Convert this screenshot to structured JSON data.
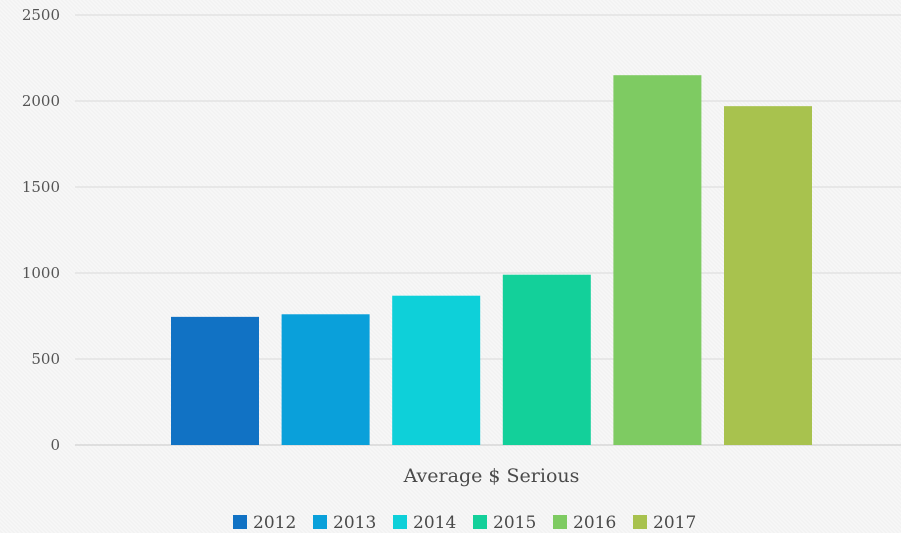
{
  "chart_data": {
    "type": "bar",
    "categories": [
      "Average $ Serious"
    ],
    "series": [
      {
        "name": "2012",
        "values": [
          745
        ],
        "color": "#1172c4"
      },
      {
        "name": "2013",
        "values": [
          760
        ],
        "color": "#0aa0da"
      },
      {
        "name": "2014",
        "values": [
          868
        ],
        "color": "#0ed0d9"
      },
      {
        "name": "2015",
        "values": [
          990
        ],
        "color": "#13d09a"
      },
      {
        "name": "2016",
        "values": [
          2150
        ],
        "color": "#7ecb62"
      },
      {
        "name": "2017",
        "values": [
          1970
        ],
        "color": "#a8c24e"
      }
    ],
    "ylim": [
      0,
      2500
    ],
    "yticks": [
      0,
      500,
      1000,
      1500,
      2000,
      2500
    ],
    "ytick_labels": [
      "0",
      "500",
      "1000",
      "1500",
      "2000",
      "2500"
    ],
    "grid": true,
    "legend": "bottom"
  }
}
